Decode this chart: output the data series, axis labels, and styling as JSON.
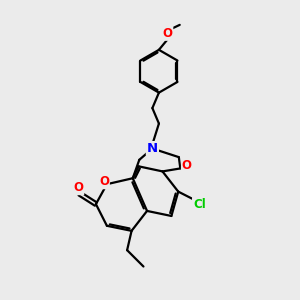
{
  "background_color": "#ebebeb",
  "bond_color": "#000000",
  "atom_colors": {
    "O": "#ff0000",
    "N": "#0000ff",
    "Cl": "#00cc00"
  },
  "bond_width": 1.6,
  "figsize": [
    3.0,
    3.0
  ],
  "dpi": 100
}
